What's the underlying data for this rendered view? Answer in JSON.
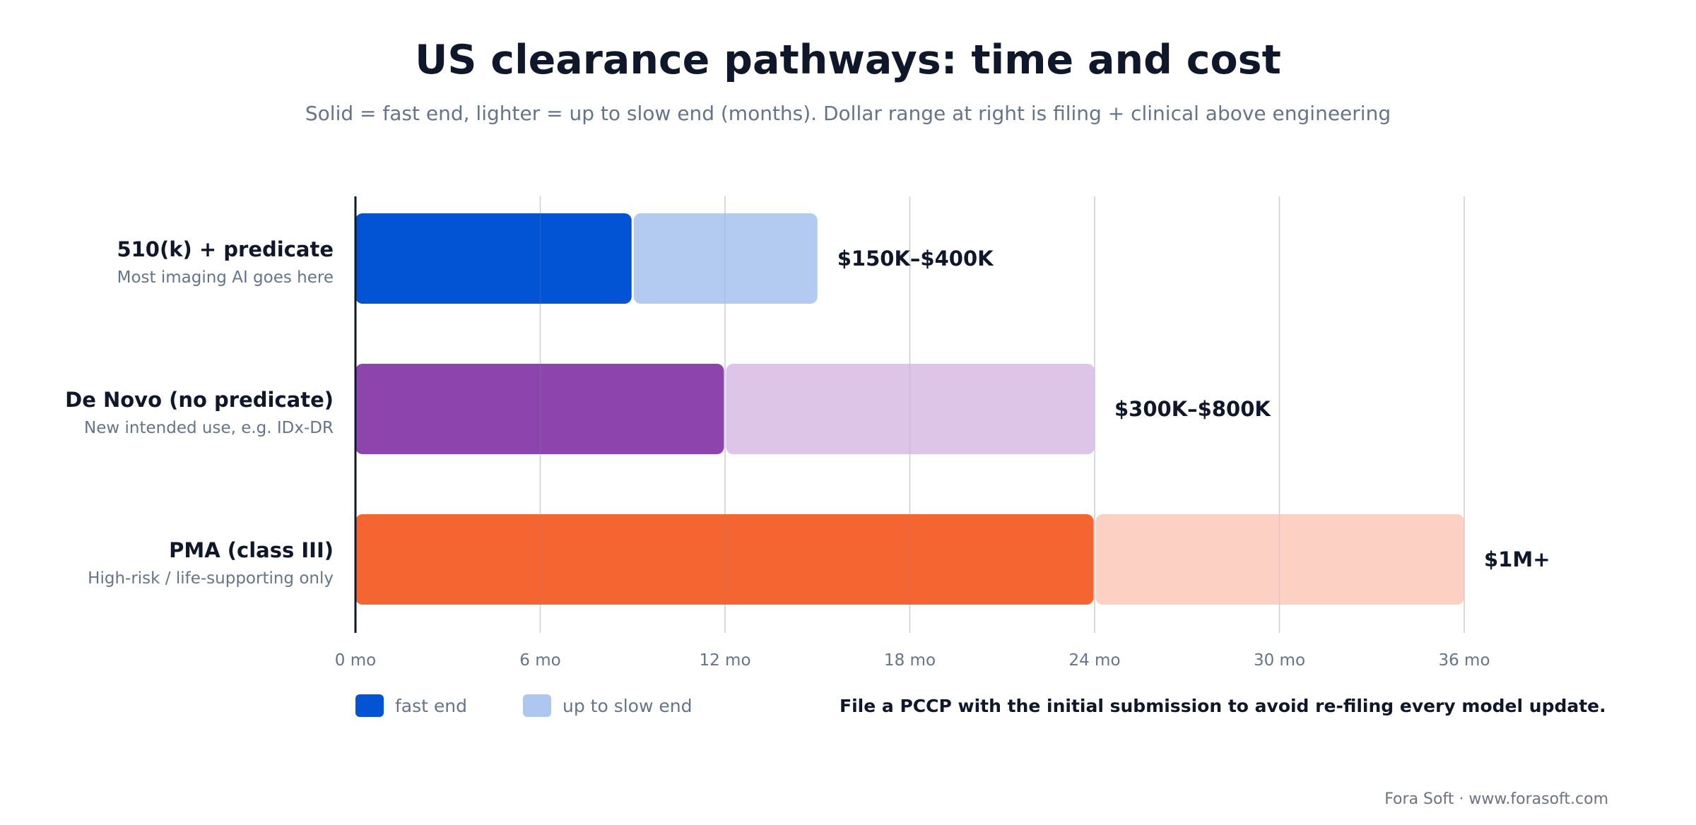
{
  "chart_data": {
    "type": "bar",
    "orientation": "horizontal",
    "stacked": true,
    "title": "US clearance pathways: time and cost",
    "subtitle": "Solid = fast end, lighter = up to slow end (months). Dollar range at right is filing + clinical above engineering",
    "x": {
      "min": 0,
      "max": 36,
      "ticks": [
        0,
        6,
        12,
        18,
        24,
        30,
        36
      ],
      "tick_labels": [
        "0 mo",
        "6 mo",
        "12 mo",
        "18 mo",
        "24 mo",
        "30 mo",
        "36 mo"
      ],
      "grid": true
    },
    "categories": [
      {
        "label": "510(k) + predicate",
        "sublabel": "Most imaging AI goes here",
        "fast_end": 9,
        "slow_end": 15,
        "cost": "$150K–$400K",
        "color_fast": "#0254d4",
        "color_slow": "#afc7f0"
      },
      {
        "label": "De Novo (no predicate)",
        "sublabel": "New intended use, e.g. IDx-DR",
        "fast_end": 12,
        "slow_end": 24,
        "cost": "$300K–$800K",
        "color_fast": "#8e44ad",
        "color_slow": "#dbc2e6"
      },
      {
        "label": "PMA (class III)",
        "sublabel": "High-risk / life-supporting only",
        "fast_end": 24,
        "slow_end": 36,
        "cost": "$1M+",
        "color_fast": "#f46532",
        "color_slow": "#fccfc0"
      }
    ],
    "legend": {
      "placement": "bottom-left",
      "items": [
        {
          "label": "fast end",
          "color": "#0254d4"
        },
        {
          "label": "up to slow end",
          "color": "#afc7f0"
        }
      ]
    },
    "note": "File a PCCP with the initial submission to avoid re-filing every model update."
  },
  "footer": {
    "credit": "Fora Soft · www.forasoft.com"
  }
}
